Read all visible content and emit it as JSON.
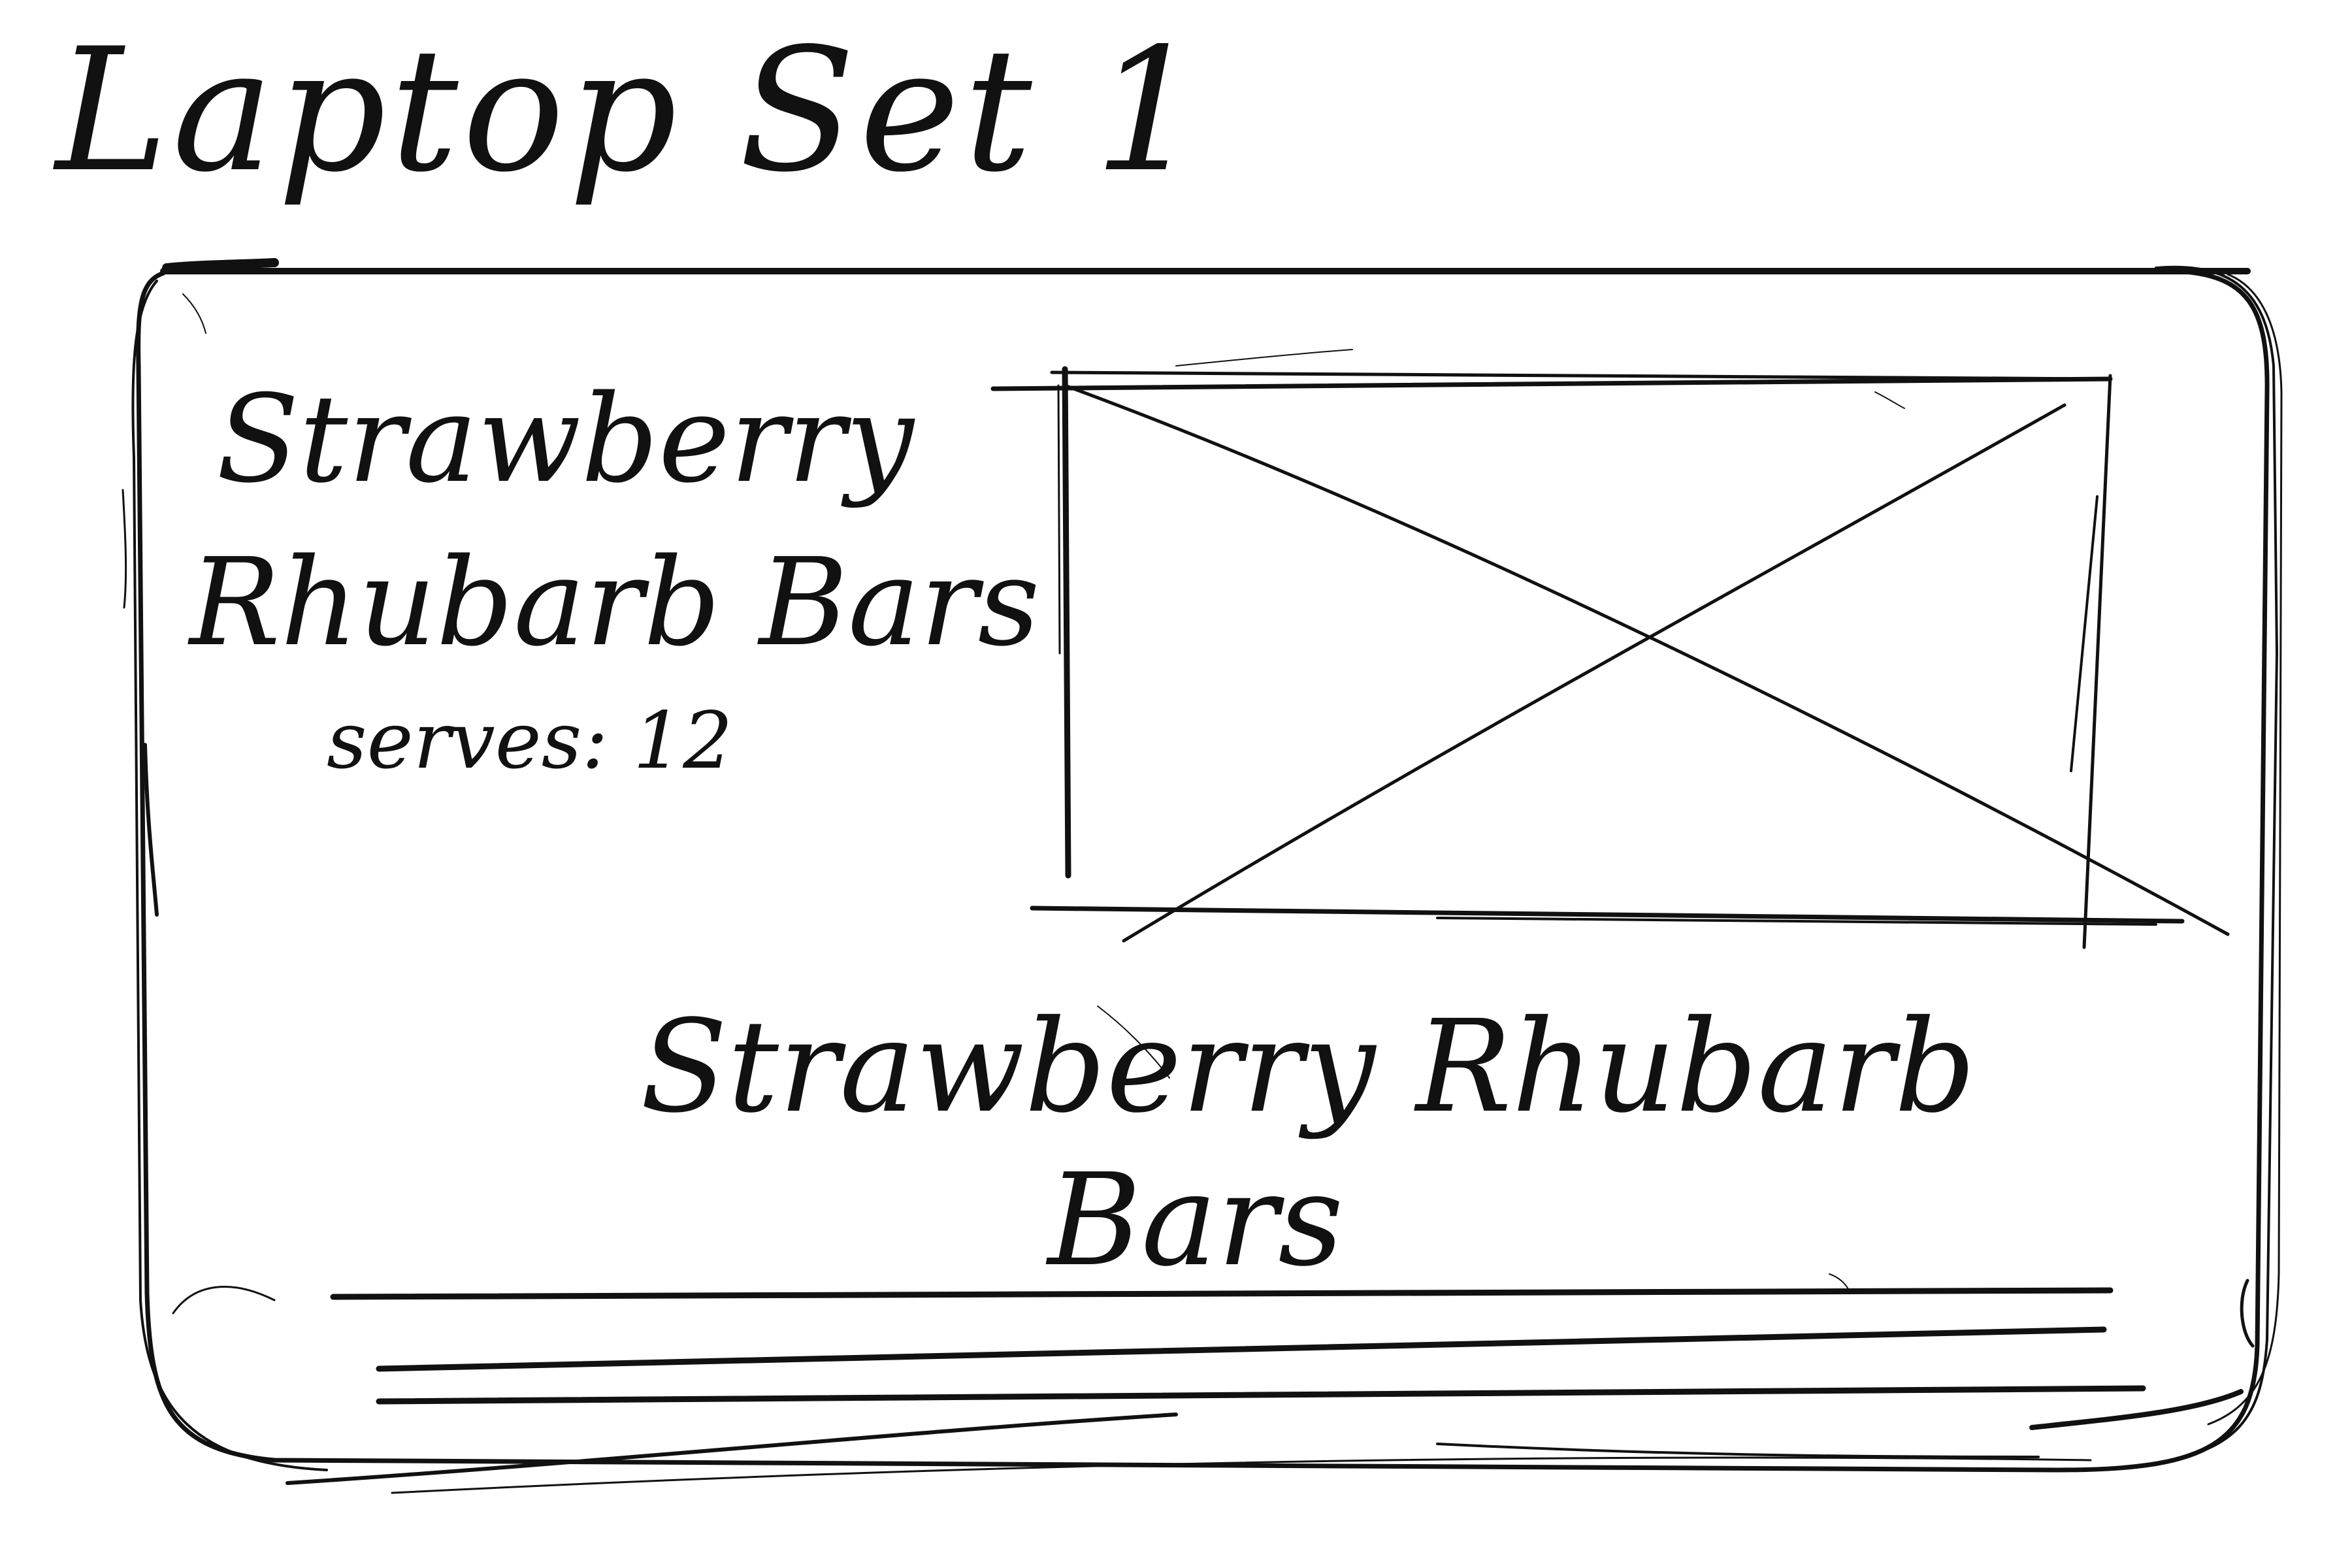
{
  "sheet_title": "Laptop Set 1",
  "hero": {
    "title_line1": "Strawberry",
    "title_line2": "Rhubarb Bars",
    "serves": "serves: 12"
  },
  "image_placeholder": {
    "icon": "image-placeholder-x"
  },
  "content": {
    "title_line1": "Strawberry Rhubarb",
    "title_line2": "Bars",
    "text_lines": 3
  },
  "colors": {
    "ink": "#111111",
    "paper": "#ffffff"
  }
}
